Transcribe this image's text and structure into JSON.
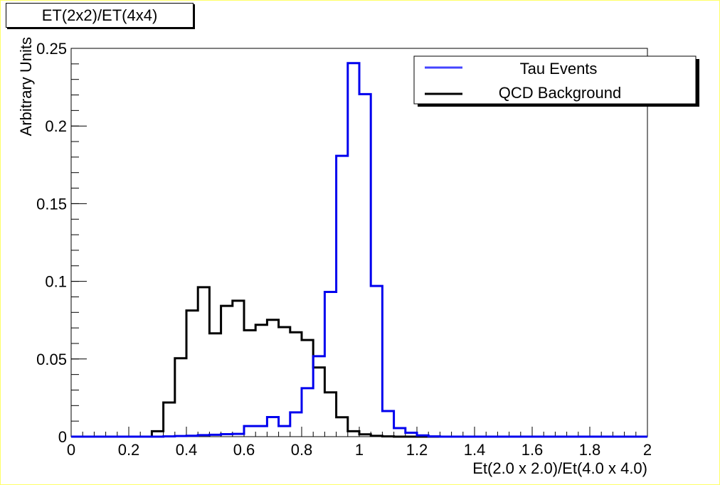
{
  "chart_data": {
    "type": "line",
    "title": "ET(2x2)/ET(4x4)",
    "xlabel": "Et(2.0 x 2.0)/Et(4.0 x 4.0)",
    "ylabel": "Arbitrary Units",
    "xlim": [
      0,
      2
    ],
    "ylim": [
      0,
      0.25
    ],
    "x_ticks": [
      "0",
      "0.2",
      "0.4",
      "0.6",
      "0.8",
      "1",
      "1.2",
      "1.4",
      "1.6",
      "1.8",
      "2"
    ],
    "y_ticks": [
      "0",
      "0.05",
      "0.1",
      "0.15",
      "0.2",
      "0.25"
    ],
    "bin_width": 0.04,
    "bin_edges_start": 0,
    "legend": "top-right",
    "series": [
      {
        "name": "Tau Events",
        "color": "#0000ee",
        "values": [
          0,
          0,
          0,
          0,
          0,
          0,
          0,
          0,
          0.0002,
          0.0004,
          0.0006,
          0.001,
          0.0012,
          0.0016,
          0.0018,
          0.0068,
          0.0068,
          0.0126,
          0.0068,
          0.0156,
          0.0312,
          0.0518,
          0.0932,
          0.1808,
          0.2405,
          0.2205,
          0.097,
          0.0165,
          0.0055,
          0.0025,
          0.0008,
          0.0002,
          0,
          0,
          0,
          0,
          0,
          0,
          0,
          0,
          0,
          0,
          0,
          0,
          0,
          0,
          0,
          0,
          0,
          0
        ]
      },
      {
        "name": "QCD Background",
        "color": "#000000",
        "values": [
          0,
          0,
          0,
          0,
          0,
          0,
          0,
          0.0035,
          0.022,
          0.0505,
          0.0812,
          0.0962,
          0.0665,
          0.0842,
          0.0875,
          0.0685,
          0.072,
          0.0752,
          0.0705,
          0.0672,
          0.0622,
          0.0445,
          0.0285,
          0.0125,
          0.0035,
          0.0015,
          0.0005,
          0.0002,
          0,
          0,
          0,
          0,
          0,
          0,
          0,
          0,
          0,
          0,
          0,
          0,
          0,
          0,
          0,
          0,
          0,
          0,
          0,
          0,
          0,
          0
        ]
      }
    ]
  }
}
